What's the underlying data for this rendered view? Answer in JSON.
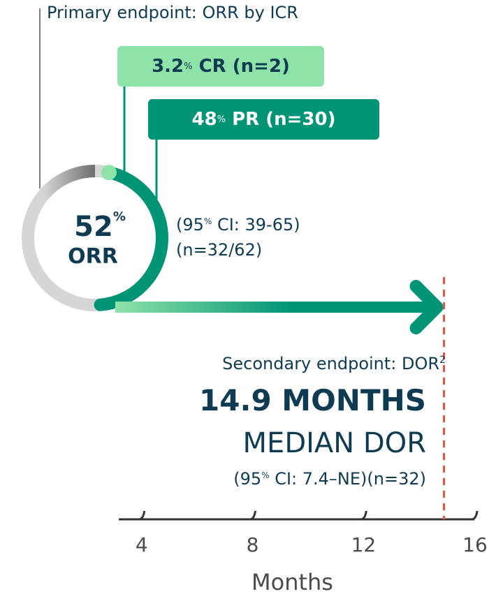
{
  "primary": {
    "title": "Primary endpoint: ORR by ICR",
    "cr": {
      "value": "3.2",
      "unit": "%",
      "label": "CR (n=2)"
    },
    "pr": {
      "value": "48",
      "unit": "%",
      "label": "PR (n=30)"
    },
    "orr": {
      "value": "52",
      "unit": "%",
      "label": "ORR"
    },
    "ci": {
      "prefix": "(95",
      "sup": "%",
      "suffix": " CI: 39-65)"
    },
    "n": "(n=32/62)"
  },
  "secondary": {
    "title": "Secondary endpoint: DOR",
    "title_sup": "2",
    "value": "14.9 MONTHS",
    "label": "MEDIAN DOR",
    "ci": {
      "prefix": "(95",
      "sup": "%",
      "suffix": " CI: 7.4–NE)(n=32)"
    }
  },
  "colors": {
    "cr": "#8ee3a8",
    "pr": "#009476",
    "ring_bg": "#d6d6d6",
    "text": "#0f3b52",
    "marker": "#e8524a"
  },
  "chart_data": {
    "type": "bar",
    "title": "",
    "orr_breakdown": [
      {
        "name": "CR",
        "percent": 3.2,
        "n": 2
      },
      {
        "name": "PR",
        "percent": 48,
        "n": 30
      }
    ],
    "orr_percent": 52,
    "median_dor_months": 14.9,
    "xlabel": "Months",
    "x_ticks": [
      4,
      8,
      12,
      16
    ],
    "xlim": [
      2,
      16
    ],
    "marker_line_at": 14.9
  }
}
